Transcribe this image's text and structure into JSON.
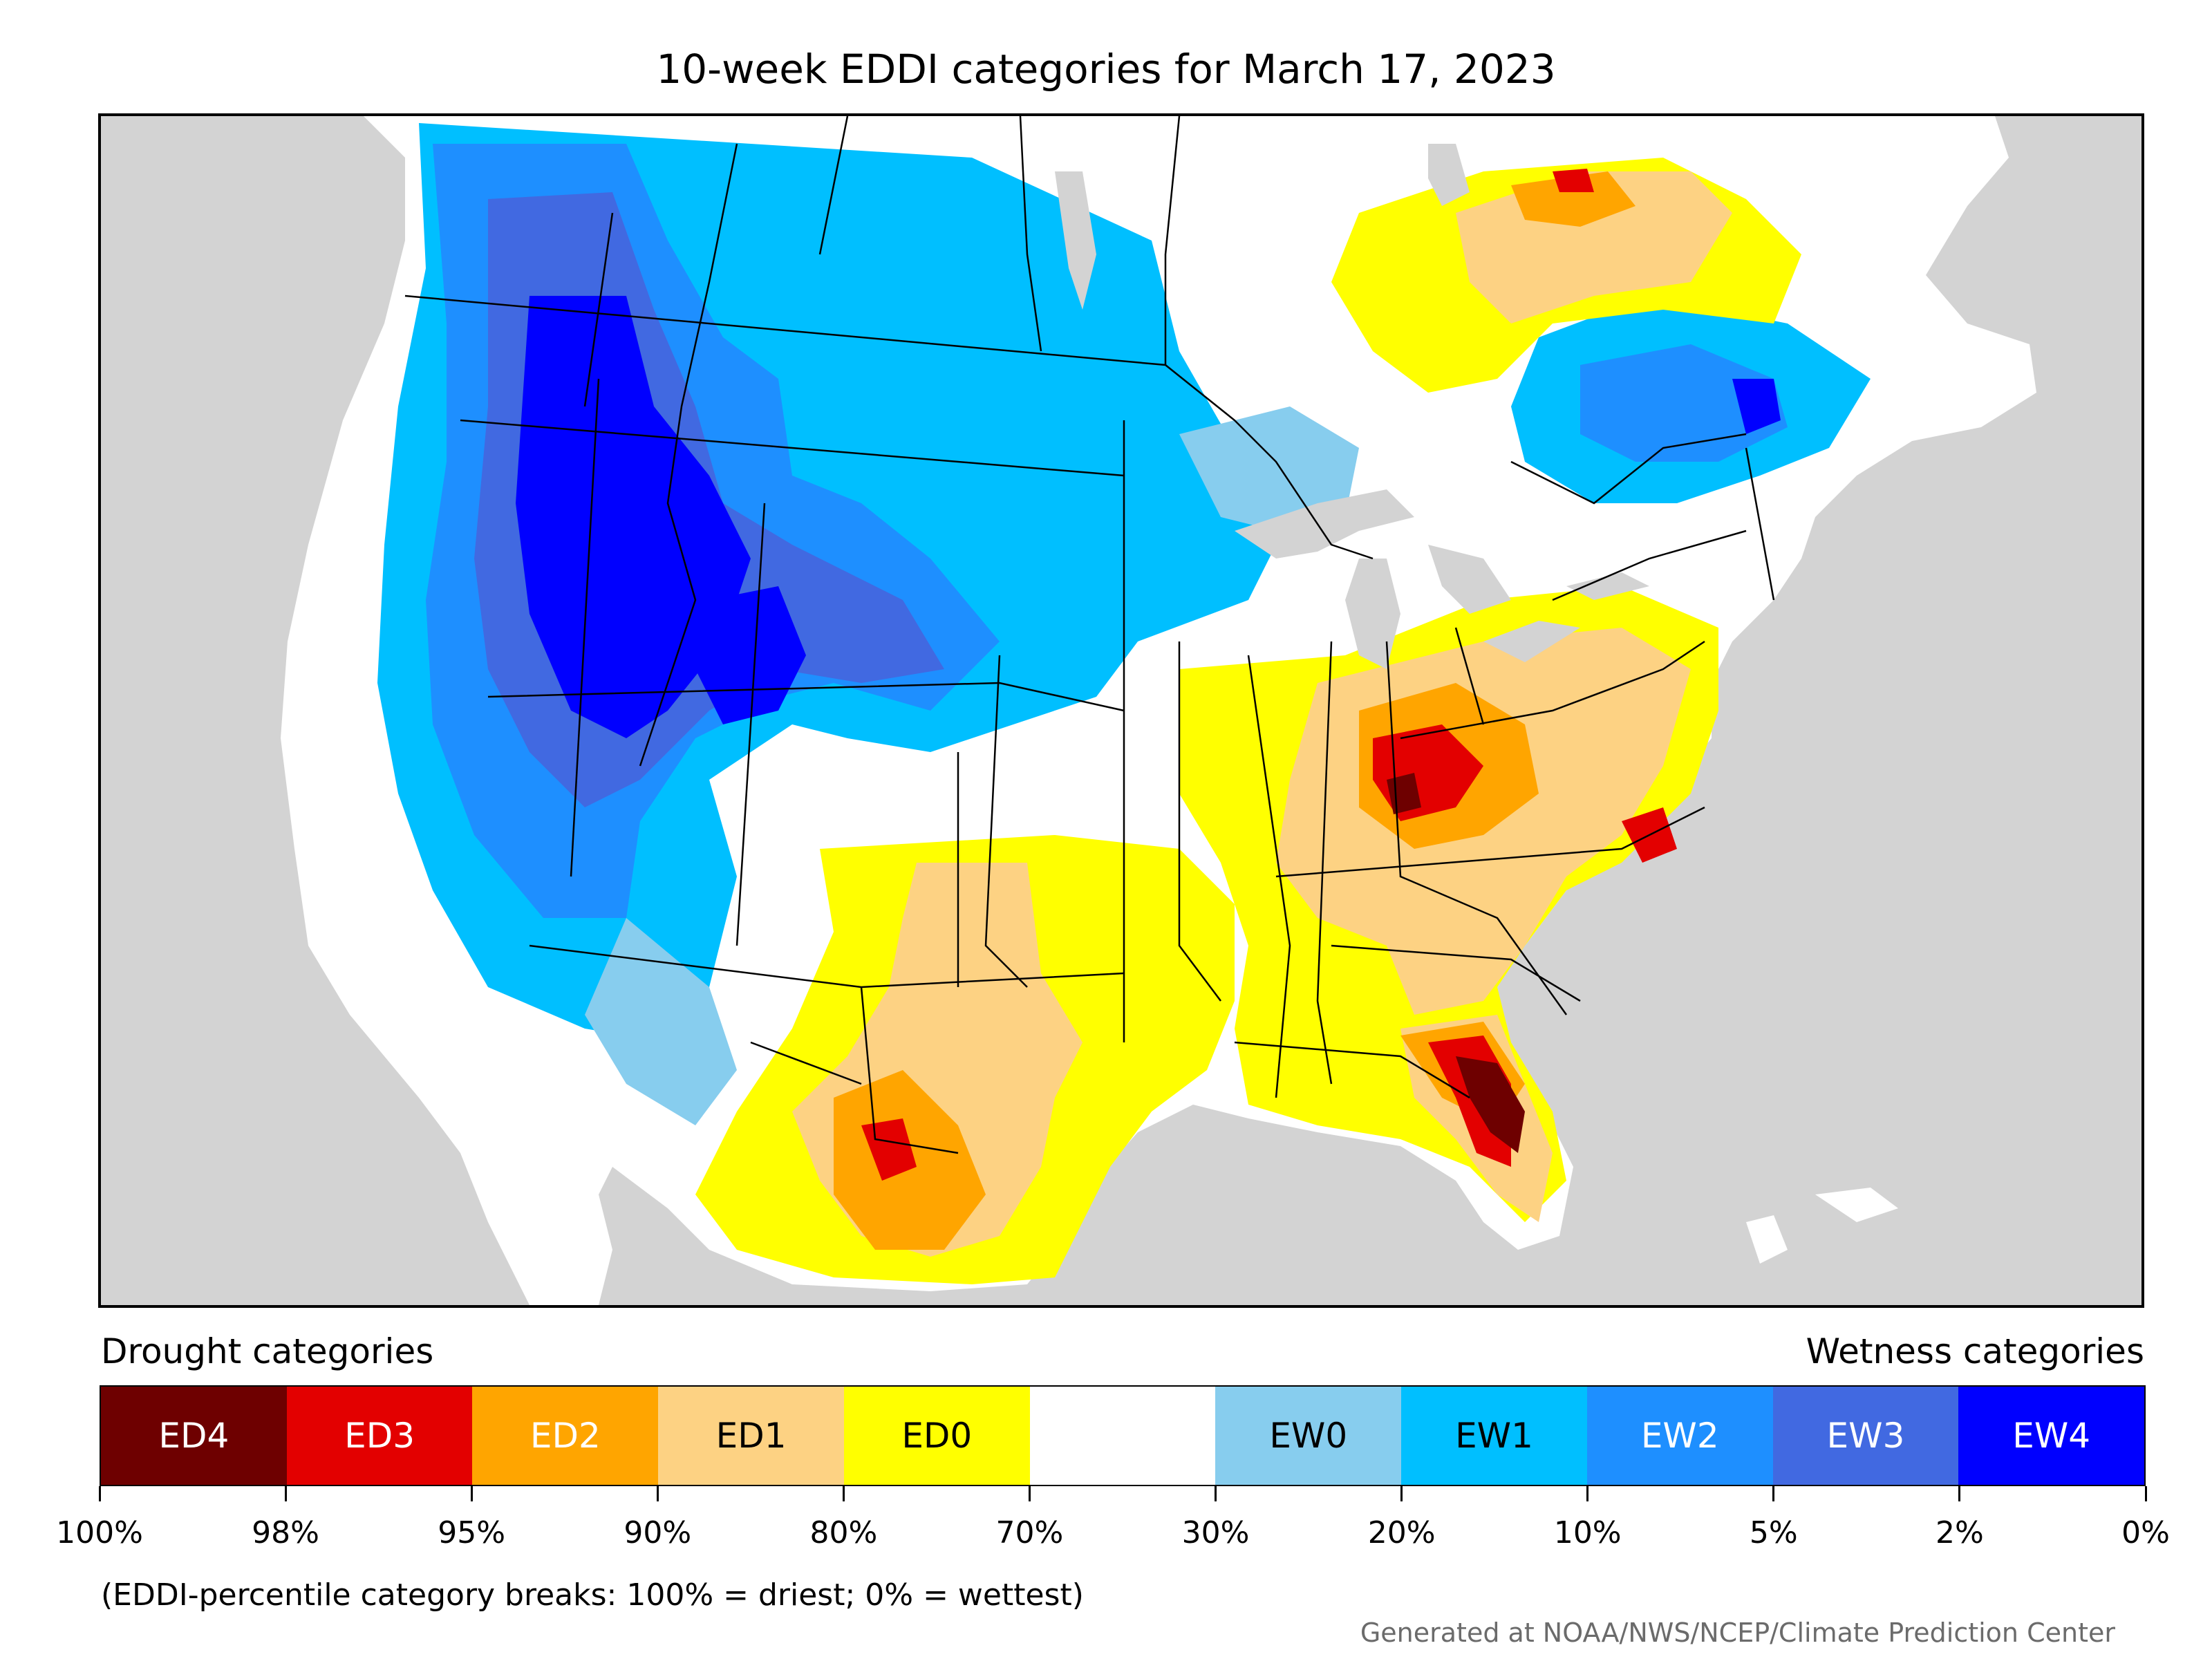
{
  "title": "10-week EDDI categories for March 17, 2023",
  "map": {
    "background_color": "#d3d3d3",
    "land_color": "#ffffff",
    "region_note": "Contiguous United States with parts of Canada and Mexico"
  },
  "legend": {
    "drought_caption": "Drought categories",
    "wetness_caption": "Wetness categories",
    "categories": [
      {
        "label": "ED4",
        "color": "#6e0000",
        "text_color": "#ffffff"
      },
      {
        "label": "ED3",
        "color": "#e30000",
        "text_color": "#ffffff"
      },
      {
        "label": "ED2",
        "color": "#ffa500",
        "text_color": "#ffffff"
      },
      {
        "label": "ED1",
        "color": "#fdd283",
        "text_color": "#000000"
      },
      {
        "label": "ED0",
        "color": "#ffff00",
        "text_color": "#000000"
      },
      {
        "label": "",
        "color": "#ffffff",
        "text_color": "#000000"
      },
      {
        "label": "EW0",
        "color": "#87cdee",
        "text_color": "#000000"
      },
      {
        "label": "EW1",
        "color": "#00bfff",
        "text_color": "#000000"
      },
      {
        "label": "EW2",
        "color": "#1e8fff",
        "text_color": "#ffffff"
      },
      {
        "label": "EW3",
        "color": "#4169e1",
        "text_color": "#ffffff"
      },
      {
        "label": "EW4",
        "color": "#0000ff",
        "text_color": "#ffffff"
      }
    ],
    "breaks": [
      "100%",
      "98%",
      "95%",
      "90%",
      "80%",
      "70%",
      "30%",
      "20%",
      "10%",
      "5%",
      "2%",
      "0%"
    ]
  },
  "note": "(EDDI-percentile category breaks: 100% = driest; 0% = wettest)",
  "credit": "Generated at NOAA/NWS/NCEP/Climate Prediction Center"
}
